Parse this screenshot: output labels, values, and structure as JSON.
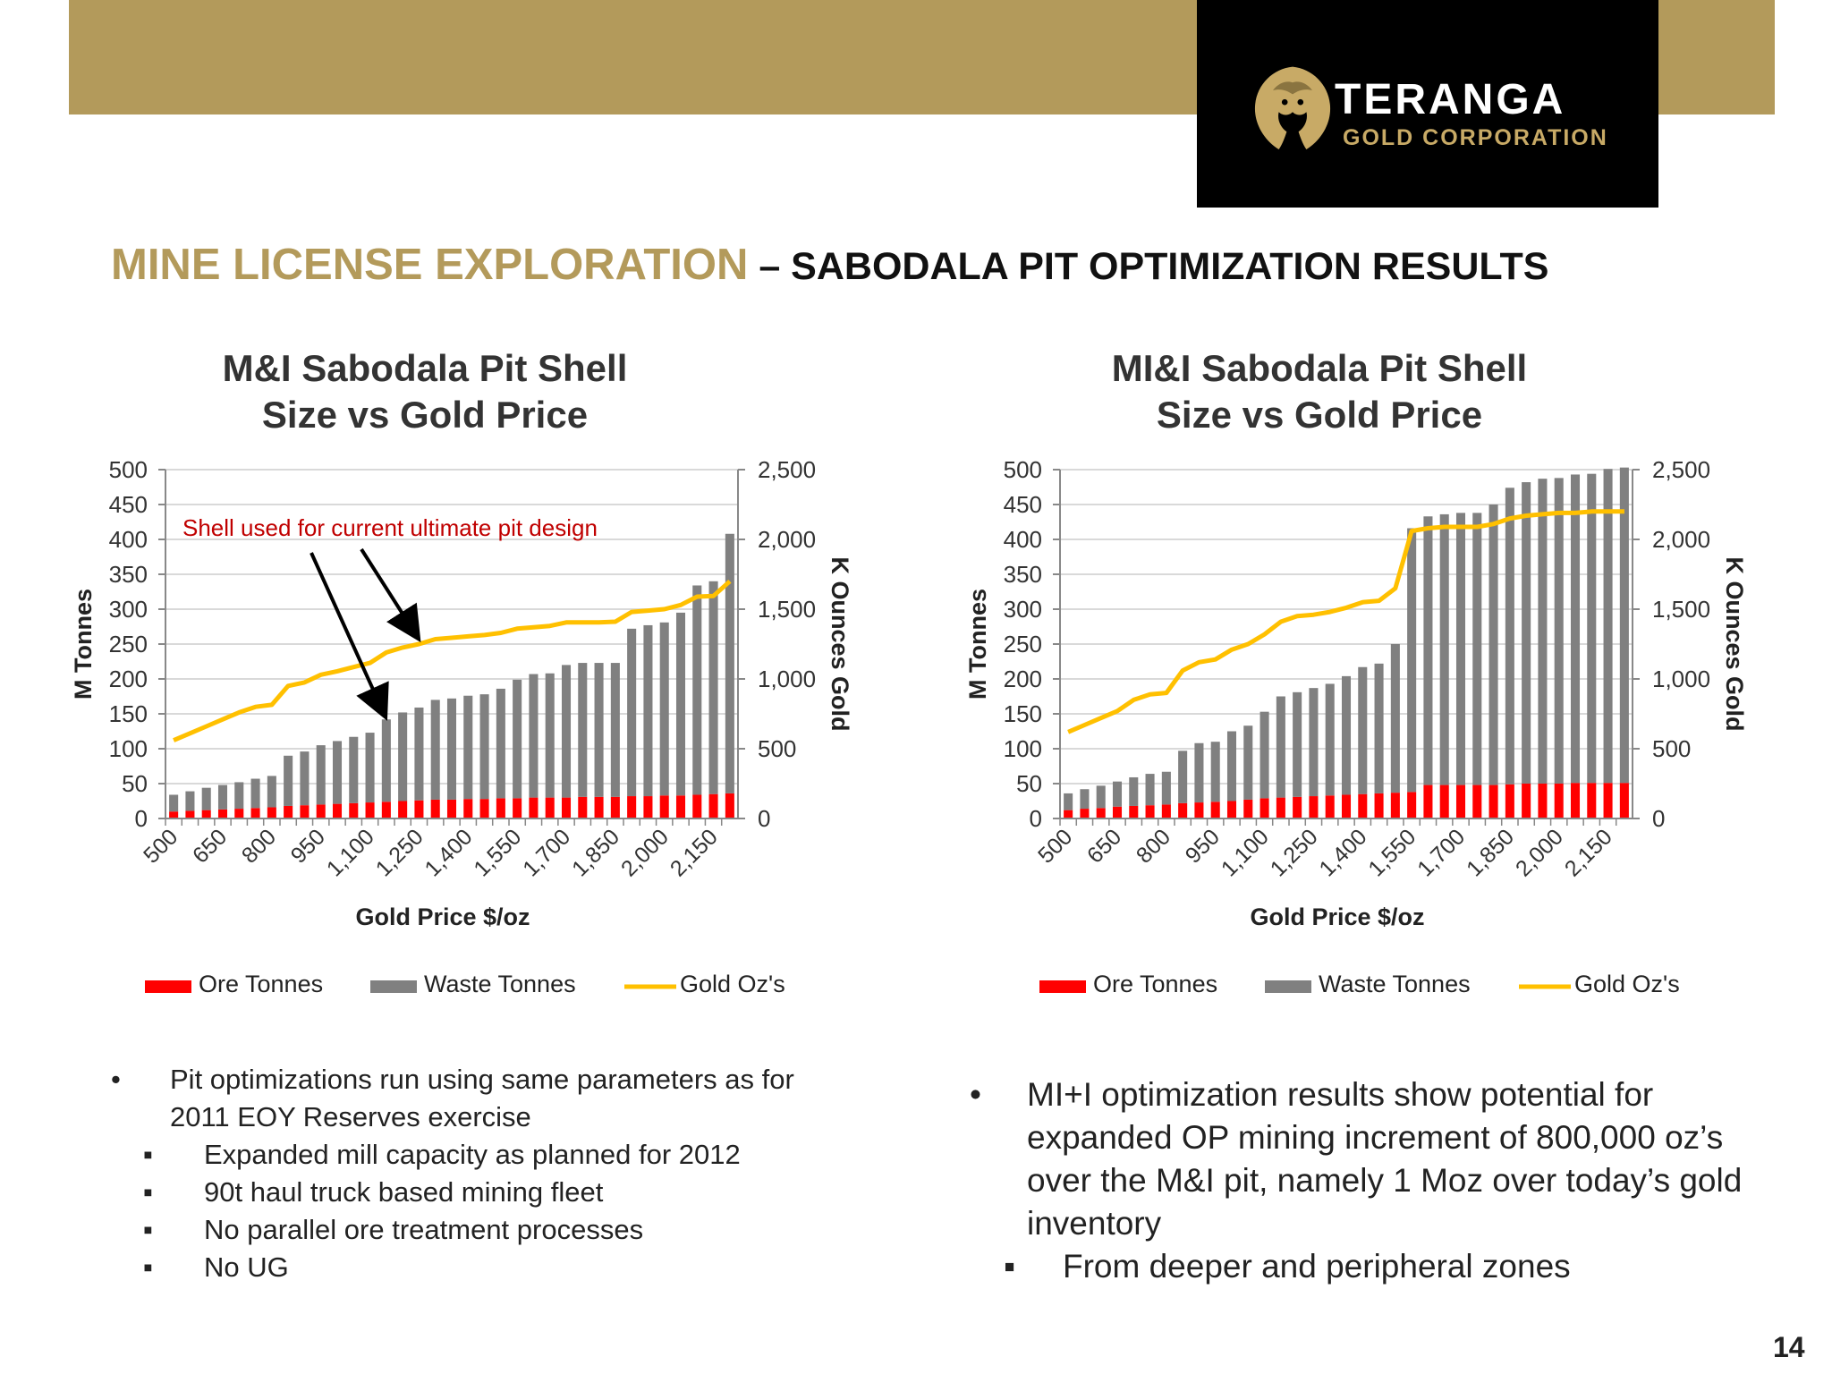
{
  "slide": {
    "title_main": "MINE LICENSE EXPLORATION",
    "title_sub": " – SABODALA PIT OPTIMIZATION RESULTS",
    "page_number": "14"
  },
  "logo": {
    "name": "TERANGA",
    "sub": "GOLD CORPORATION",
    "icon": "lion-head-icon"
  },
  "colors": {
    "accent": "#b39a5b",
    "ore": "#ff0000",
    "waste": "#808080",
    "gold": "#ffc000",
    "annotation": "#c00000"
  },
  "chart_data": [
    {
      "type": "bar",
      "title": [
        "M&I Sabodala Pit Shell",
        "Size vs Gold Price"
      ],
      "xlabel": "Gold Price $/oz",
      "ylabel": "M Tonnes",
      "y2label": "K Ounces Gold",
      "ylim": [
        0,
        500
      ],
      "y2lim": [
        0,
        2500
      ],
      "yticks": [
        "0",
        "50",
        "100",
        "150",
        "200",
        "250",
        "300",
        "350",
        "400",
        "450",
        "500"
      ],
      "y2ticks": [
        "0",
        "500",
        "1,000",
        "1,500",
        "2,000",
        "2,500"
      ],
      "x": [
        500,
        550,
        600,
        650,
        700,
        750,
        800,
        850,
        900,
        950,
        1000,
        1050,
        1100,
        1150,
        1200,
        1250,
        1300,
        1350,
        1400,
        1450,
        1500,
        1550,
        1600,
        1650,
        1700,
        1750,
        1800,
        1850,
        1900,
        1950,
        2000,
        2050,
        2100,
        2150,
        2200
      ],
      "x_tick_labels": [
        "500",
        "650",
        "800",
        "950",
        "1,100",
        "1,250",
        "1,400",
        "1,550",
        "1,700",
        "1,850",
        "2,000",
        "2,150"
      ],
      "grid": true,
      "legend_position": "bottom",
      "series": [
        {
          "name": "Ore Tonnes",
          "kind": "bar",
          "axis": "left",
          "values": [
            10,
            11,
            12,
            13,
            14,
            15,
            16,
            18,
            19,
            20,
            21,
            22,
            23,
            24,
            25,
            26,
            27,
            27,
            28,
            28,
            29,
            29,
            30,
            30,
            30,
            31,
            31,
            31,
            32,
            32,
            33,
            33,
            34,
            35,
            36
          ]
        },
        {
          "name": "Waste Tonnes",
          "kind": "bar",
          "axis": "left",
          "values": [
            24,
            28,
            32,
            35,
            38,
            42,
            45,
            72,
            77,
            85,
            90,
            95,
            100,
            118,
            127,
            133,
            143,
            145,
            148,
            150,
            157,
            170,
            177,
            178,
            190,
            192,
            192,
            192,
            240,
            245,
            248,
            262,
            300,
            305,
            372
          ]
        },
        {
          "name": "Gold Oz's",
          "kind": "line",
          "axis": "right",
          "values": [
            560,
            610,
            660,
            710,
            760,
            800,
            815,
            950,
            975,
            1030,
            1055,
            1085,
            1115,
            1190,
            1225,
            1250,
            1285,
            1295,
            1305,
            1315,
            1330,
            1360,
            1370,
            1380,
            1405,
            1405,
            1405,
            1410,
            1480,
            1490,
            1500,
            1530,
            1590,
            1595,
            1700
          ]
        }
      ],
      "annotation": "Shell used for current ultimate pit design"
    },
    {
      "type": "bar",
      "title": [
        "MI&I Sabodala Pit Shell",
        "Size vs Gold Price"
      ],
      "xlabel": "Gold Price $/oz",
      "ylabel": "M Tonnes",
      "y2label": "K Ounces Gold",
      "ylim": [
        0,
        500
      ],
      "y2lim": [
        0,
        2500
      ],
      "yticks": [
        "0",
        "50",
        "100",
        "150",
        "200",
        "250",
        "300",
        "350",
        "400",
        "450",
        "500"
      ],
      "y2ticks": [
        "0",
        "500",
        "1,000",
        "1,500",
        "2,000",
        "2,500"
      ],
      "x": [
        500,
        550,
        600,
        650,
        700,
        750,
        800,
        850,
        900,
        950,
        1000,
        1050,
        1100,
        1150,
        1200,
        1250,
        1300,
        1350,
        1400,
        1450,
        1500,
        1550,
        1600,
        1650,
        1700,
        1750,
        1800,
        1850,
        1900,
        1950,
        2000,
        2050,
        2100,
        2150,
        2200
      ],
      "x_tick_labels": [
        "500",
        "650",
        "800",
        "950",
        "1,100",
        "1,250",
        "1,400",
        "1,550",
        "1,700",
        "1,850",
        "2,000",
        "2,150"
      ],
      "grid": true,
      "legend_position": "bottom",
      "series": [
        {
          "name": "Ore Tonnes",
          "kind": "bar",
          "axis": "left",
          "values": [
            12,
            14,
            15,
            17,
            18,
            19,
            20,
            22,
            23,
            24,
            25,
            27,
            29,
            30,
            31,
            32,
            33,
            34,
            35,
            36,
            37,
            38,
            48,
            48,
            48,
            48,
            48,
            49,
            50,
            50,
            50,
            51,
            51,
            51,
            51
          ]
        },
        {
          "name": "Waste Tonnes",
          "kind": "bar",
          "axis": "left",
          "values": [
            24,
            28,
            32,
            36,
            41,
            45,
            47,
            75,
            85,
            86,
            100,
            106,
            124,
            145,
            150,
            155,
            160,
            170,
            182,
            186,
            213,
            378,
            385,
            388,
            390,
            390,
            402,
            425,
            432,
            437,
            438,
            442,
            443,
            450,
            452
          ]
        },
        {
          "name": "Gold Oz's",
          "kind": "line",
          "axis": "right",
          "values": [
            620,
            670,
            720,
            770,
            850,
            890,
            900,
            1060,
            1120,
            1140,
            1210,
            1250,
            1320,
            1410,
            1450,
            1460,
            1480,
            1510,
            1550,
            1560,
            1650,
            2060,
            2080,
            2090,
            2090,
            2090,
            2110,
            2150,
            2170,
            2180,
            2190,
            2190,
            2200,
            2200,
            2200
          ]
        }
      ]
    }
  ],
  "bullets_left": [
    {
      "level": 1,
      "text": "Pit optimizations run using same parameters as for"
    },
    {
      "level": 0,
      "text": "2011 EOY Reserves exercise"
    },
    {
      "level": 2,
      "text": "Expanded mill capacity as planned for 2012"
    },
    {
      "level": 2,
      "text": "90t haul truck based mining fleet"
    },
    {
      "level": 2,
      "text": "No parallel ore treatment processes"
    },
    {
      "level": 2,
      "text": "No UG"
    }
  ],
  "bullets_right": [
    {
      "level": 1,
      "text": "MI+I optimization results show potential for expanded OP mining increment of 800,000 oz’s over the M&I pit, namely 1 Moz over today’s gold inventory"
    },
    {
      "level": 2,
      "text": "From deeper and peripheral zones"
    }
  ]
}
